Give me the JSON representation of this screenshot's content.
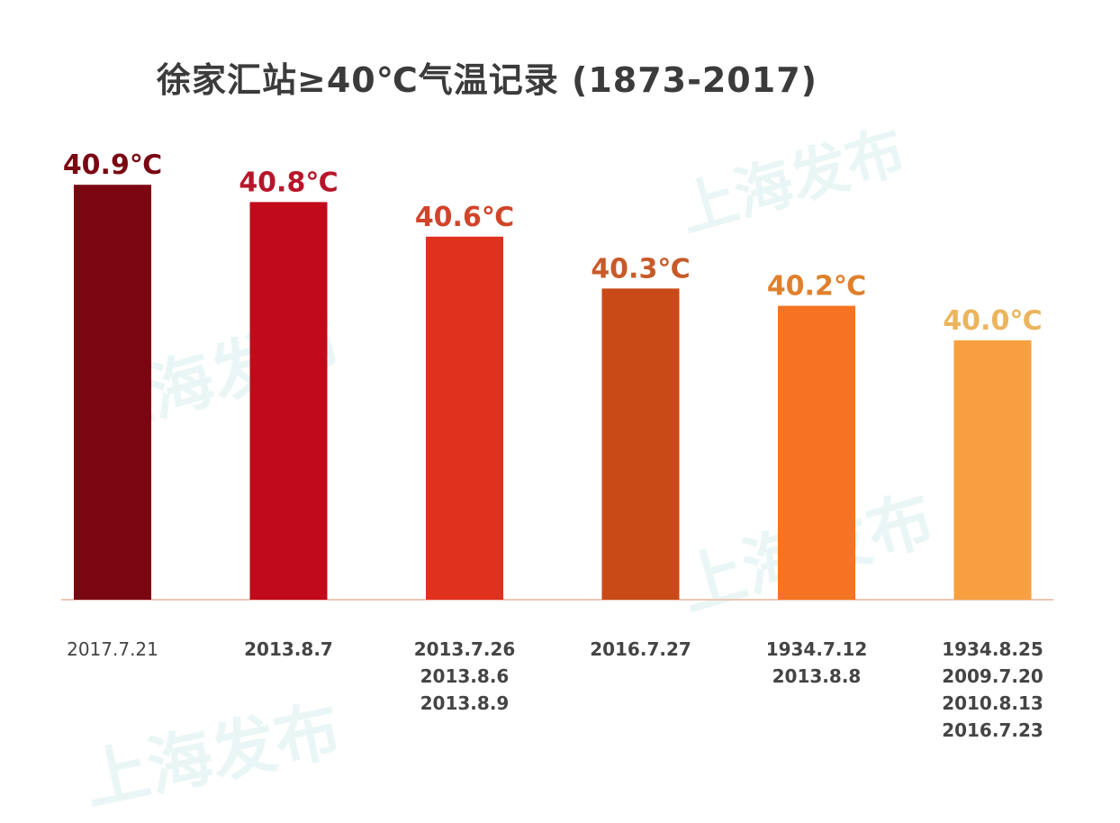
{
  "chart_data": {
    "type": "bar",
    "title": "徐家汇站≥40℃气温记录 (1873-2017)",
    "xlabel": "",
    "ylabel": "",
    "ylim": [
      38.5,
      41.0
    ],
    "grid": false,
    "legend": "none",
    "categories": [
      [
        "2017.7.21"
      ],
      [
        "2013.8.7"
      ],
      [
        "2013.7.26",
        "2013.8.6",
        "2013.8.9"
      ],
      [
        "2016.7.27"
      ],
      [
        "1934.7.12",
        "2013.8.8"
      ],
      [
        "1934.8.25",
        "2009.7.20",
        "2010.8.13",
        "2016.7.23"
      ]
    ],
    "values": [
      40.9,
      40.8,
      40.6,
      40.3,
      40.2,
      40.0
    ],
    "data_labels": [
      "40.9℃",
      "40.8℃",
      "40.6℃",
      "40.3℃",
      "40.2℃",
      "40.0℃"
    ],
    "bar_colors": [
      "#7a0611",
      "#c10a1a",
      "#e0301e",
      "#c94a17",
      "#f57322",
      "#f8a040"
    ],
    "label_colors": [
      "#7a0611",
      "#b8152a",
      "#d2442a",
      "#c85a28",
      "#e0802c",
      "#ecb45c"
    ]
  },
  "watermark": {
    "text": "上海发布"
  }
}
